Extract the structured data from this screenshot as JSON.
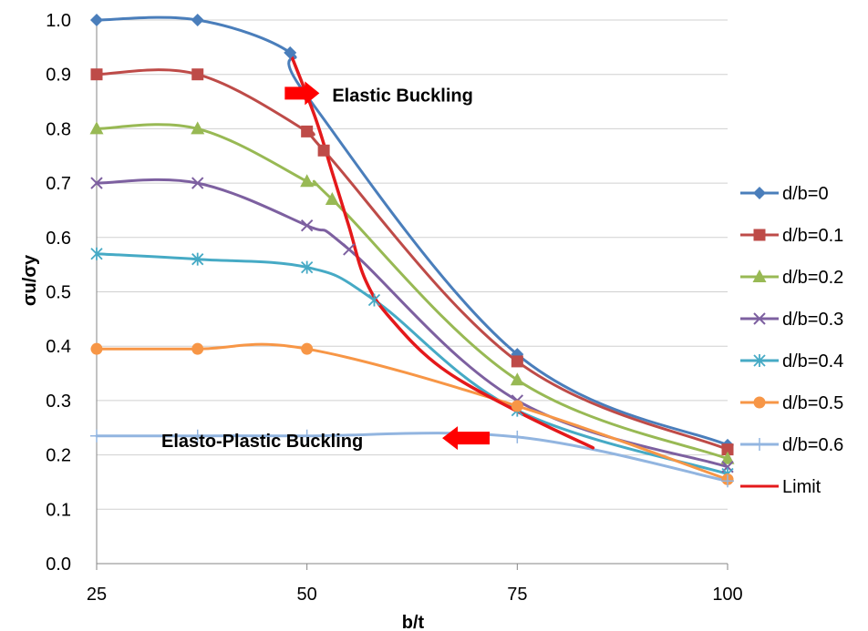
{
  "chart_data": {
    "type": "line",
    "xlabel": "b/t",
    "ylabel": "σu/σy",
    "xlim": [
      25,
      100
    ],
    "ylim": [
      0,
      1.0
    ],
    "x_ticks": [
      "25",
      "50",
      "75",
      "100"
    ],
    "y_ticks": [
      "0.0",
      "0.1",
      "0.2",
      "0.3",
      "0.4",
      "0.5",
      "0.6",
      "0.7",
      "0.8",
      "0.9",
      "1.0"
    ],
    "grid": "horizontal",
    "legend_position": "right",
    "series": [
      {
        "name": "d/b=0",
        "color": "#4a7ebb",
        "marker": "diamond",
        "x": [
          25,
          37,
          48,
          50,
          75,
          100
        ],
        "y": [
          1.0,
          1.0,
          0.94,
          0.86,
          0.385,
          0.218
        ]
      },
      {
        "name": "d/b=0.1",
        "color": "#be4b48",
        "marker": "square",
        "x": [
          25,
          37,
          50,
          52,
          75,
          100
        ],
        "y": [
          0.9,
          0.9,
          0.795,
          0.76,
          0.372,
          0.21
        ]
      },
      {
        "name": "d/b=0.2",
        "color": "#98b954",
        "marker": "triangle",
        "x": [
          25,
          37,
          50,
          53,
          75,
          100
        ],
        "y": [
          0.8,
          0.8,
          0.703,
          0.67,
          0.338,
          0.193
        ]
      },
      {
        "name": "d/b=0.3",
        "color": "#7d60a0",
        "marker": "x",
        "x": [
          25,
          37,
          50,
          55,
          75,
          100
        ],
        "y": [
          0.7,
          0.7,
          0.622,
          0.578,
          0.3,
          0.178
        ]
      },
      {
        "name": "d/b=0.4",
        "color": "#46aac5",
        "marker": "asterisk",
        "x": [
          25,
          37,
          50,
          58,
          75,
          100
        ],
        "y": [
          0.57,
          0.56,
          0.545,
          0.485,
          0.282,
          0.165
        ]
      },
      {
        "name": "d/b=0.5",
        "color": "#f79646",
        "marker": "circle",
        "x": [
          25,
          37,
          50,
          75,
          100
        ],
        "y": [
          0.395,
          0.395,
          0.395,
          0.29,
          0.155
        ]
      },
      {
        "name": "d/b=0.6",
        "color": "#92b5e0",
        "marker": "plus",
        "x": [
          25,
          37,
          50,
          75,
          100
        ],
        "y": [
          0.235,
          0.235,
          0.235,
          0.233,
          0.152
        ]
      },
      {
        "name": "Limit",
        "color": "#e4191b",
        "marker": "none",
        "x": [
          48,
          51,
          53,
          55,
          57,
          60,
          66,
          75,
          84
        ],
        "y": [
          0.94,
          0.82,
          0.72,
          0.62,
          0.52,
          0.45,
          0.36,
          0.28,
          0.213
        ]
      }
    ],
    "annotations": [
      {
        "text": "Elastic Buckling",
        "x": 53,
        "y": 0.862,
        "arrow": "right",
        "arrow_color": "#ff0000"
      },
      {
        "text": "Elasto-Plastic Buckling",
        "x": 32.7,
        "y": 0.226,
        "arrow": "left",
        "arrow_color": "#ff0000"
      }
    ]
  }
}
